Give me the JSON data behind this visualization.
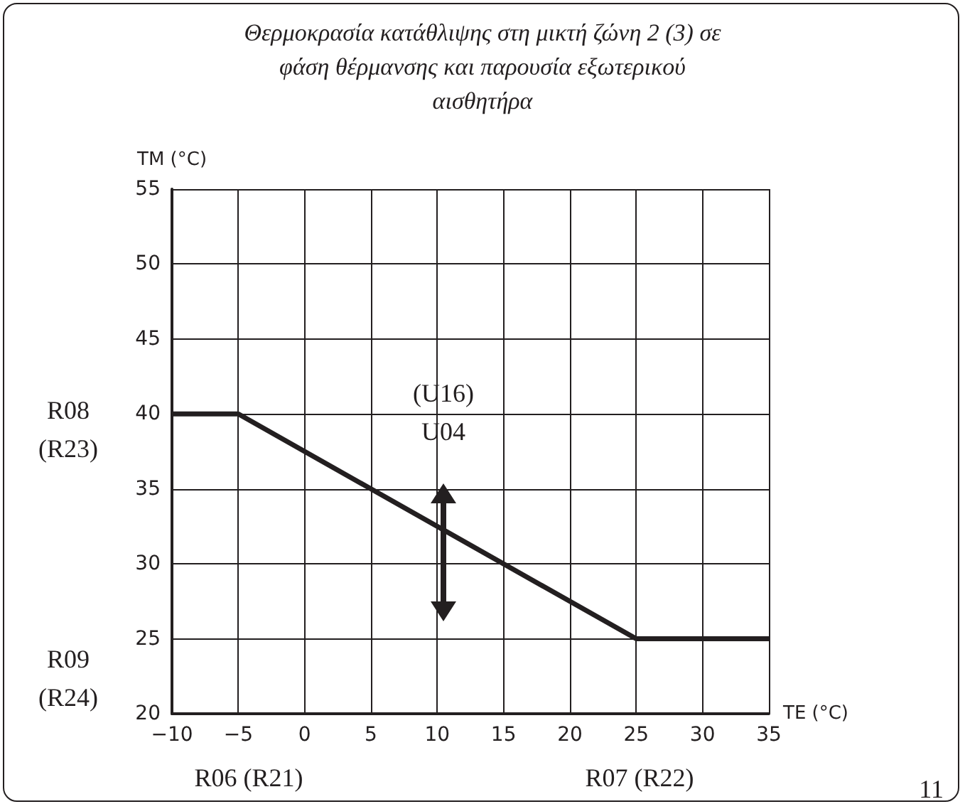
{
  "chart_data": {
    "type": "line",
    "title": "Θερμοκρασία κατάθλιψης στη μικτή ζώνη 2 (3) σε φάση θέρμανσης και παρουσία εξωτερικού αισθητήρα",
    "xlabel": "TE (°C)",
    "ylabel": "TM (°C)",
    "x": [
      -10,
      -5,
      25,
      35
    ],
    "series": [
      {
        "color": "#231f20",
        "values": [
          40,
          40,
          25,
          25
        ]
      }
    ],
    "xlim": [
      -10,
      35
    ],
    "xticks": [
      -10,
      -5,
      0,
      5,
      10,
      15,
      20,
      25,
      30,
      35
    ],
    "ylim": [
      20,
      55
    ],
    "yticks": [
      20,
      25,
      30,
      35,
      40,
      45,
      50,
      55
    ],
    "grid": true,
    "marker": "none",
    "line_style": "solid",
    "annotations": [
      "R08\n(R23)",
      "R09\n(R24)",
      "R06 (R21)",
      "R07 (R22)",
      "(U16)\nU04",
      "11"
    ]
  }
}
